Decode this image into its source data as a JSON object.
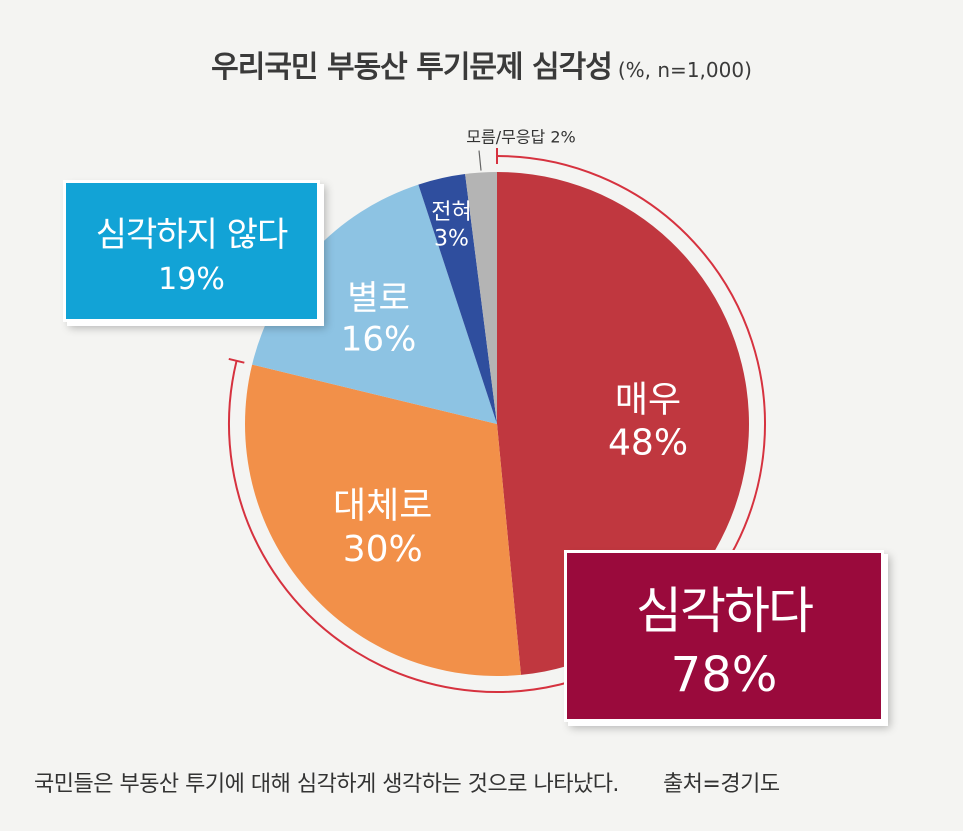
{
  "title": "우리국민 부동산 투기문제 심각성",
  "subtitle": "(%, n=1,000)",
  "chart_data": {
    "type": "pie",
    "title": "우리국민 부동산 투기문제 심각성",
    "subtitle": "(%, n=1,000)",
    "slices": [
      {
        "label": "매우",
        "value": 48,
        "value_label": "48%",
        "color": "#c0373f"
      },
      {
        "label": "대체로",
        "value": 30,
        "value_label": "30%",
        "color": "#f29049"
      },
      {
        "label": "별로",
        "value": 16,
        "value_label": "16%",
        "color": "#8dc3e3"
      },
      {
        "label": "전혀",
        "value": 3,
        "value_label": "3%",
        "color": "#2f4e9e"
      },
      {
        "label": "모름/무응답",
        "value": 2,
        "value_label": "2%",
        "color": "#b4b4b4"
      }
    ],
    "groups": [
      {
        "label": "심각하다",
        "value_label": "78%",
        "color": "#9a0a3c"
      },
      {
        "label": "심각하지 않다",
        "value_label": "19%",
        "color": "#12a3d6"
      }
    ]
  },
  "footer": {
    "caption": "국민들은 부동산 투기에 대해 심각하게 생각하는 것으로 나타났다.",
    "source": "출처=경기도"
  }
}
